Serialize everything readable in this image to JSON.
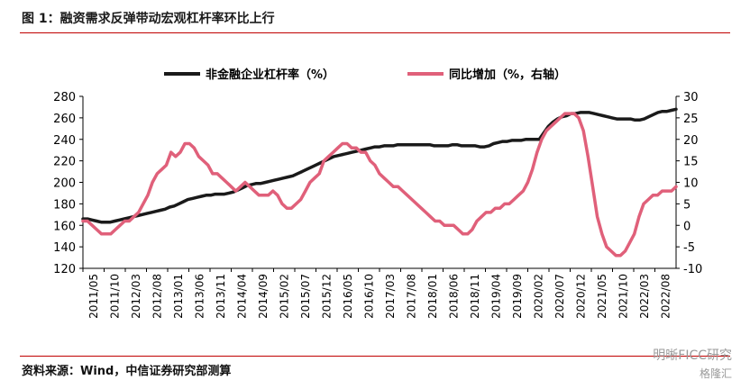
{
  "header": {
    "title": "图 1：融资需求反弹带动宏观杠杆率环比上行"
  },
  "footer": {
    "source": "资料来源：Wind，中信证券研究部测算"
  },
  "watermark": {
    "text": "明晰FICC研究",
    "sub": "格隆汇"
  },
  "colors": {
    "leverage": "#1a1a1a",
    "yoy": "#e0607a",
    "rule": "#c00000"
  },
  "chart_data": {
    "type": "line",
    "title": "",
    "x_labels": [
      "2011/05",
      "2011/10",
      "2012/03",
      "2012/08",
      "2013/01",
      "2013/06",
      "2013/11",
      "2014/04",
      "2014/09",
      "2015/02",
      "2015/07",
      "2015/12",
      "2016/05",
      "2016/10",
      "2017/03",
      "2017/08",
      "2018/01",
      "2018/06",
      "2018/11",
      "2019/04",
      "2019/09",
      "2020/02",
      "2020/07",
      "2020/12",
      "2021/05",
      "2021/10",
      "2022/03",
      "2022/08"
    ],
    "y_left": {
      "ticks": [
        120,
        140,
        160,
        180,
        200,
        220,
        240,
        260,
        280
      ],
      "lim": [
        120,
        280
      ]
    },
    "y_right": {
      "ticks": [
        -10,
        -5,
        0,
        5,
        10,
        15,
        20,
        25,
        30
      ],
      "lim": [
        -10,
        30
      ]
    },
    "series": [
      {
        "name": "非金融企业杠杆率（%）",
        "axis": "left",
        "values": [
          166,
          166,
          165,
          164,
          163,
          163,
          163,
          164,
          165,
          166,
          167,
          168,
          169,
          170,
          171,
          172,
          173,
          174,
          175,
          177,
          178,
          180,
          182,
          184,
          185,
          186,
          187,
          188,
          188,
          189,
          189,
          189,
          190,
          191,
          193,
          195,
          197,
          198,
          199,
          199,
          200,
          201,
          202,
          203,
          204,
          205,
          206,
          208,
          210,
          212,
          214,
          216,
          218,
          220,
          222,
          224,
          225,
          226,
          227,
          228,
          229,
          230,
          231,
          232,
          233,
          233,
          234,
          234,
          234,
          235,
          235,
          235,
          235,
          235,
          235,
          235,
          235,
          234,
          234,
          234,
          234,
          235,
          235,
          234,
          234,
          234,
          234,
          233,
          233,
          234,
          236,
          237,
          238,
          238,
          239,
          239,
          239,
          240,
          240,
          240,
          240,
          246,
          252,
          256,
          259,
          261,
          262,
          264,
          264,
          265,
          265,
          265,
          264,
          263,
          262,
          261,
          260,
          259,
          259,
          259,
          259,
          258,
          258,
          259,
          261,
          263,
          265,
          266,
          266,
          267,
          268
        ]
      },
      {
        "name": "同比增加（%，右轴）",
        "axis": "right",
        "values": [
          1,
          1,
          0,
          -1,
          -2,
          -2,
          -2,
          -1,
          0,
          1,
          1,
          2,
          3,
          5,
          7,
          10,
          12,
          13,
          14,
          17,
          16,
          17,
          19,
          19,
          18,
          16,
          15,
          14,
          12,
          12,
          11,
          10,
          9,
          8,
          9,
          10,
          9,
          8,
          7,
          7,
          7,
          8,
          7,
          5,
          4,
          4,
          5,
          6,
          8,
          10,
          11,
          12,
          15,
          16,
          17,
          18,
          19,
          19,
          18,
          18,
          17,
          17,
          15,
          14,
          12,
          11,
          10,
          9,
          9,
          8,
          7,
          6,
          5,
          4,
          3,
          2,
          1,
          1,
          0,
          0,
          0,
          -1,
          -2,
          -2,
          -1,
          1,
          2,
          3,
          3,
          4,
          4,
          5,
          5,
          6,
          7,
          8,
          10,
          13,
          17,
          20,
          22,
          23,
          24,
          25,
          26,
          26,
          26,
          25,
          22,
          16,
          9,
          2,
          -2,
          -5,
          -6,
          -7,
          -7,
          -6,
          -4,
          -2,
          2,
          5,
          6,
          7,
          7,
          8,
          8,
          8,
          9
        ]
      }
    ]
  }
}
